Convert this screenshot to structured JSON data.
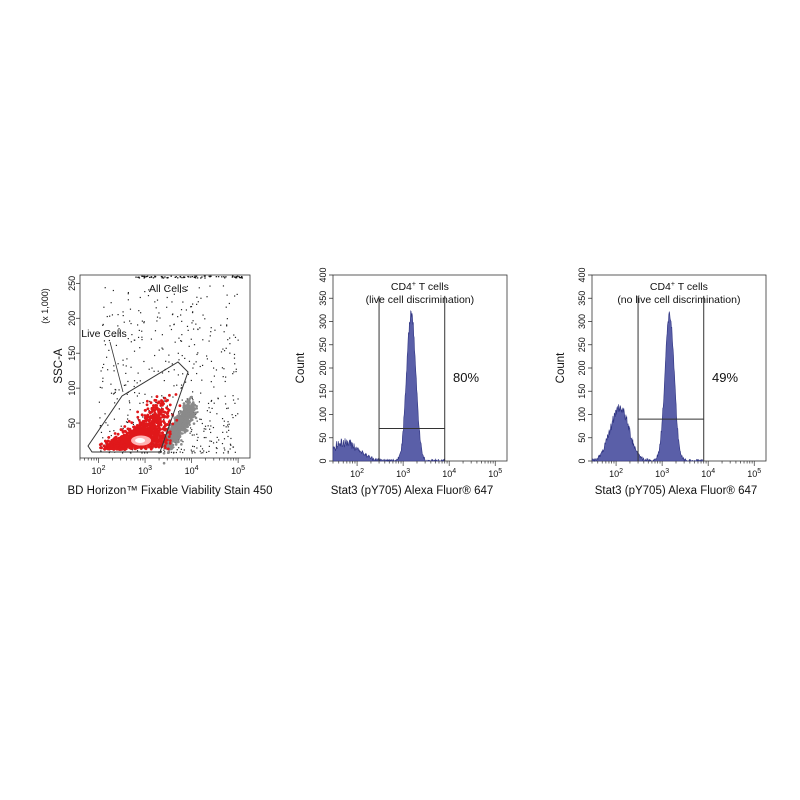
{
  "chart_data": [
    {
      "type": "scatter",
      "title": "All Cells",
      "xlabel": "BD Horizon™ Fixable Viability Stain 450",
      "ylabel": "SSC-A",
      "y_scale_note": "(x 1,000)",
      "x_scale": "log",
      "xlim": [
        40,
        180000
      ],
      "ylim": [
        0,
        262
      ],
      "x_ticks": [
        {
          "value": 100,
          "label": "10",
          "exp": "2"
        },
        {
          "value": 1000,
          "label": "10",
          "exp": "3"
        },
        {
          "value": 10000,
          "label": "10",
          "exp": "4"
        },
        {
          "value": 100000,
          "label": "10",
          "exp": "5"
        }
      ],
      "y_ticks": [
        {
          "value": 50,
          "label": "50"
        },
        {
          "value": 100,
          "label": "100"
        },
        {
          "value": 150,
          "label": "150"
        },
        {
          "value": 200,
          "label": "200"
        },
        {
          "value": 250,
          "label": "250"
        }
      ],
      "gate": {
        "label": "Live Cells",
        "color": "#333333"
      },
      "populations": [
        {
          "name": "live",
          "color": "#e0181b",
          "center_x": 1000,
          "center_y": 25
        },
        {
          "name": "dead",
          "color": "#8a8a8a",
          "center_x": 7000,
          "center_y": 45
        }
      ]
    },
    {
      "type": "histogram",
      "title": "CD4",
      "title_sup": "+",
      "title_rest": " T cells",
      "subtitle": "(live cell discrimination)",
      "xlabel": "Stat3 (pY705) Alexa Fluor® 647",
      "ylabel": "Count",
      "x_scale": "log",
      "xlim": [
        30,
        180000
      ],
      "ylim": [
        0,
        400
      ],
      "y_ticks": [
        0,
        50,
        100,
        150,
        200,
        250,
        300,
        350,
        400
      ],
      "x_ticks": [
        {
          "value": 100,
          "label": "10",
          "exp": "2"
        },
        {
          "value": 1000,
          "label": "10",
          "exp": "3"
        },
        {
          "value": 10000,
          "label": "10",
          "exp": "4"
        },
        {
          "value": 100000,
          "label": "10",
          "exp": "5"
        }
      ],
      "gate_range": [
        300,
        8000
      ],
      "gate_level": 70,
      "percent": "80%",
      "fill_color": "#5a5fa8",
      "peaks": [
        {
          "center": 55,
          "height": 40,
          "width": 0.3
        },
        {
          "center": 1500,
          "height": 318,
          "width": 0.1
        }
      ]
    },
    {
      "type": "histogram",
      "title": "CD4",
      "title_sup": "+",
      "title_rest": " T cells",
      "subtitle": "(no live cell discrimination)",
      "xlabel": "Stat3 (pY705) Alexa Fluor® 647",
      "ylabel": "Count",
      "x_scale": "log",
      "xlim": [
        30,
        180000
      ],
      "ylim": [
        0,
        400
      ],
      "y_ticks": [
        0,
        50,
        100,
        150,
        200,
        250,
        300,
        350,
        400
      ],
      "x_ticks": [
        {
          "value": 100,
          "label": "10",
          "exp": "2"
        },
        {
          "value": 1000,
          "label": "10",
          "exp": "3"
        },
        {
          "value": 10000,
          "label": "10",
          "exp": "4"
        },
        {
          "value": 100000,
          "label": "10",
          "exp": "5"
        }
      ],
      "gate_range": [
        300,
        8000
      ],
      "gate_level": 90,
      "percent": "49%",
      "fill_color": "#5a5fa8",
      "peaks": [
        {
          "center": 120,
          "height": 115,
          "width": 0.2
        },
        {
          "center": 1450,
          "height": 315,
          "width": 0.1
        }
      ]
    }
  ]
}
